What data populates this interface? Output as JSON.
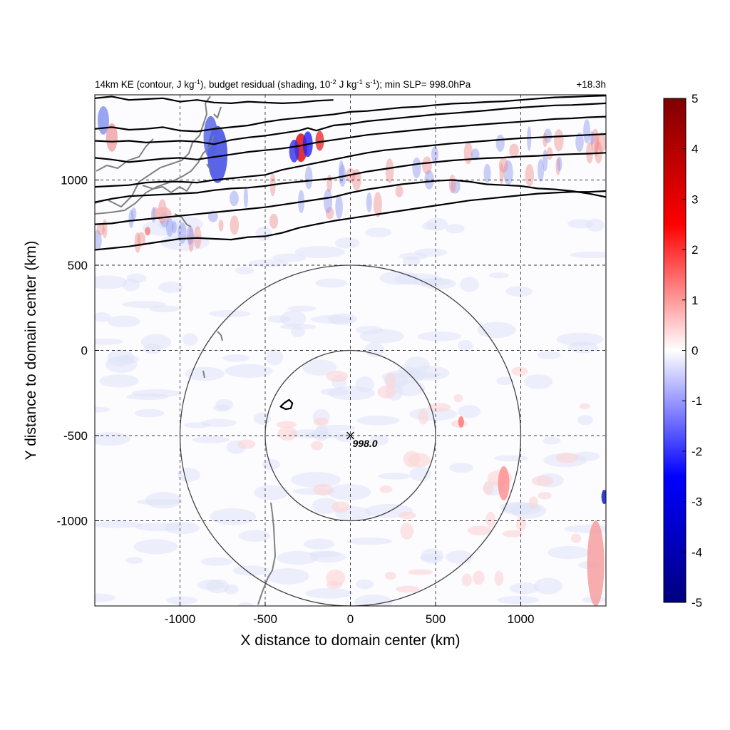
{
  "header": {
    "title_pre": "14km KE (contour, J kg",
    "title_sup1": "-1",
    "title_mid1": "), budget residual (shading, 10",
    "title_sup2": "-2",
    "title_mid2": " J kg",
    "title_sup3": "-1",
    "title_mid3": " s",
    "title_sup4": "-1",
    "title_post": "); min SLP= 998.0hPa",
    "time_label": "+18.3h"
  },
  "chart_data": {
    "type": "heatmap",
    "xlabel": "X distance to domain center (km)",
    "ylabel": "Y distance to domain center (km)",
    "xlim": [
      -1500,
      1500
    ],
    "ylim": [
      -1500,
      1500
    ],
    "xticks": [
      -1000,
      -500,
      0,
      500,
      1000
    ],
    "yticks": [
      -1000,
      -500,
      0,
      500,
      1000
    ],
    "grid": true,
    "colorbar": {
      "min": -5,
      "max": 5,
      "ticks": [
        5,
        4,
        3,
        2,
        1,
        0,
        -1,
        -2,
        -3,
        -4,
        -5
      ],
      "colormap": [
        "#00007f",
        "#0000ff",
        "#ffffff",
        "#ff0000",
        "#7f0000"
      ]
    },
    "center_marker": {
      "x": 0,
      "y": -500,
      "label": "998.0"
    },
    "range_circles": [
      {
        "x": 0,
        "y": -500,
        "radius": 500
      },
      {
        "x": 0,
        "y": -500,
        "radius": 1000
      }
    ],
    "ke_contours": [
      [
        [
          -1500,
          1480
        ],
        [
          -1400,
          1490
        ],
        [
          -1300,
          1470
        ],
        [
          -1200,
          1475
        ],
        [
          -1100,
          1480
        ],
        [
          -1000,
          1460
        ],
        [
          -900,
          1470
        ],
        [
          -800,
          1455
        ],
        [
          -700,
          1450
        ],
        [
          -600,
          1460
        ],
        [
          -500,
          1455
        ],
        [
          -400,
          1450
        ],
        [
          -300,
          1455
        ],
        [
          -200,
          1465
        ],
        [
          -100,
          1470
        ]
      ],
      [
        [
          -1500,
          1300
        ],
        [
          -1400,
          1310
        ],
        [
          -1300,
          1295
        ],
        [
          -1200,
          1300
        ],
        [
          -1100,
          1310
        ],
        [
          -1000,
          1290
        ],
        [
          -900,
          1285
        ],
        [
          -800,
          1300
        ],
        [
          -700,
          1310
        ],
        [
          -600,
          1320
        ],
        [
          -500,
          1340
        ],
        [
          -400,
          1355
        ],
        [
          -300,
          1365
        ],
        [
          -200,
          1375
        ],
        [
          -100,
          1385
        ],
        [
          0,
          1400
        ],
        [
          100,
          1405
        ],
        [
          200,
          1415
        ],
        [
          300,
          1425
        ],
        [
          400,
          1430
        ],
        [
          500,
          1440
        ],
        [
          600,
          1448
        ],
        [
          700,
          1452
        ],
        [
          800,
          1458
        ],
        [
          900,
          1462
        ],
        [
          1000,
          1470
        ],
        [
          1100,
          1478
        ],
        [
          1200,
          1485
        ],
        [
          1300,
          1488
        ],
        [
          1400,
          1492
        ],
        [
          1500,
          1495
        ]
      ],
      [
        [
          -1500,
          1230
        ],
        [
          -1400,
          1225
        ],
        [
          -1300,
          1230
        ],
        [
          -1200,
          1220
        ],
        [
          -1100,
          1225
        ],
        [
          -1000,
          1230
        ],
        [
          -900,
          1225
        ],
        [
          -800,
          1210
        ],
        [
          -700,
          1235
        ],
        [
          -600,
          1250
        ],
        [
          -500,
          1260
        ],
        [
          -400,
          1275
        ],
        [
          -300,
          1290
        ],
        [
          -250,
          1305
        ],
        [
          -200,
          1290
        ],
        [
          -100,
          1320
        ],
        [
          0,
          1330
        ],
        [
          100,
          1345
        ],
        [
          200,
          1355
        ],
        [
          300,
          1365
        ],
        [
          400,
          1375
        ],
        [
          500,
          1385
        ],
        [
          600,
          1392
        ],
        [
          700,
          1400
        ],
        [
          800,
          1408
        ],
        [
          900,
          1418
        ],
        [
          1000,
          1425
        ],
        [
          1100,
          1432
        ],
        [
          1200,
          1438
        ],
        [
          1300,
          1440
        ],
        [
          1400,
          1445
        ],
        [
          1500,
          1450
        ]
      ],
      [
        [
          -1500,
          1130
        ],
        [
          -1400,
          1120
        ],
        [
          -1300,
          1105
        ],
        [
          -1200,
          1115
        ],
        [
          -1100,
          1125
        ],
        [
          -1000,
          1130
        ],
        [
          -900,
          1120
        ],
        [
          -800,
          1135
        ],
        [
          -700,
          1150
        ],
        [
          -600,
          1165
        ],
        [
          -500,
          1175
        ],
        [
          -400,
          1185
        ],
        [
          -300,
          1200
        ],
        [
          -200,
          1220
        ],
        [
          -100,
          1235
        ],
        [
          0,
          1250
        ],
        [
          100,
          1265
        ],
        [
          200,
          1275
        ],
        [
          300,
          1285
        ],
        [
          400,
          1295
        ],
        [
          500,
          1305
        ],
        [
          600,
          1312
        ],
        [
          700,
          1320
        ],
        [
          800,
          1328
        ],
        [
          900,
          1335
        ],
        [
          1000,
          1342
        ],
        [
          1100,
          1350
        ],
        [
          1200,
          1358
        ],
        [
          1300,
          1362
        ],
        [
          1400,
          1368
        ],
        [
          1500,
          1372
        ]
      ],
      [
        [
          -1500,
          960
        ],
        [
          -1400,
          965
        ],
        [
          -1300,
          970
        ],
        [
          -1200,
          985
        ],
        [
          -1100,
          990
        ],
        [
          -1000,
          990
        ],
        [
          -900,
          985
        ],
        [
          -800,
          1000
        ],
        [
          -700,
          1010
        ],
        [
          -600,
          1020
        ],
        [
          -500,
          1030
        ],
        [
          -400,
          1060
        ],
        [
          -300,
          1080
        ],
        [
          -200,
          1100
        ],
        [
          -100,
          1120
        ],
        [
          0,
          1140
        ],
        [
          100,
          1160
        ],
        [
          200,
          1175
        ],
        [
          300,
          1185
        ],
        [
          400,
          1195
        ],
        [
          500,
          1205
        ],
        [
          600,
          1215
        ],
        [
          700,
          1222
        ],
        [
          800,
          1230
        ],
        [
          900,
          1238
        ],
        [
          1000,
          1245
        ],
        [
          1100,
          1250
        ],
        [
          1200,
          1255
        ],
        [
          1300,
          1260
        ],
        [
          1400,
          1265
        ],
        [
          1500,
          1270
        ]
      ],
      [
        [
          -1500,
          870
        ],
        [
          -1400,
          890
        ],
        [
          -1300,
          905
        ],
        [
          -1200,
          910
        ],
        [
          -1100,
          915
        ],
        [
          -1000,
          920
        ],
        [
          -900,
          925
        ],
        [
          -800,
          940
        ],
        [
          -700,
          950
        ],
        [
          -600,
          955
        ],
        [
          -500,
          965
        ],
        [
          -400,
          980
        ],
        [
          -300,
          990
        ],
        [
          -200,
          1000
        ],
        [
          -100,
          1010
        ],
        [
          0,
          1030
        ],
        [
          100,
          1050
        ],
        [
          200,
          1065
        ],
        [
          300,
          1080
        ],
        [
          400,
          1095
        ],
        [
          500,
          1105
        ],
        [
          600,
          1115
        ],
        [
          700,
          1122
        ],
        [
          800,
          1128
        ],
        [
          900,
          1132
        ],
        [
          1000,
          1138
        ],
        [
          1100,
          1142
        ],
        [
          1200,
          1148
        ],
        [
          1300,
          1152
        ],
        [
          1400,
          1155
        ],
        [
          1500,
          1160
        ]
      ],
      [
        [
          -1500,
          740
        ],
        [
          -1400,
          745
        ],
        [
          -1300,
          760
        ],
        [
          -1200,
          770
        ],
        [
          -1100,
          780
        ],
        [
          -1000,
          790
        ],
        [
          -900,
          800
        ],
        [
          -800,
          810
        ],
        [
          -700,
          820
        ],
        [
          -600,
          830
        ],
        [
          -500,
          840
        ],
        [
          -400,
          855
        ],
        [
          -300,
          870
        ],
        [
          -200,
          885
        ],
        [
          -100,
          900
        ],
        [
          0,
          925
        ],
        [
          100,
          945
        ],
        [
          200,
          960
        ],
        [
          300,
          975
        ],
        [
          400,
          985
        ],
        [
          500,
          995
        ],
        [
          600,
          1000
        ],
        [
          700,
          990
        ],
        [
          800,
          975
        ],
        [
          900,
          970
        ],
        [
          1000,
          965
        ],
        [
          1100,
          950
        ],
        [
          1200,
          945
        ],
        [
          1300,
          935
        ],
        [
          1400,
          920
        ],
        [
          1500,
          900
        ]
      ],
      [
        [
          -1500,
          590
        ],
        [
          -1400,
          600
        ],
        [
          -1300,
          610
        ],
        [
          -1200,
          625
        ],
        [
          -1100,
          640
        ],
        [
          -1000,
          655
        ],
        [
          -900,
          660
        ],
        [
          -800,
          655
        ],
        [
          -700,
          650
        ],
        [
          -600,
          665
        ],
        [
          -500,
          670
        ],
        [
          -400,
          690
        ],
        [
          -300,
          720
        ],
        [
          -200,
          740
        ],
        [
          -100,
          760
        ],
        [
          0,
          775
        ],
        [
          100,
          790
        ],
        [
          200,
          805
        ],
        [
          300,
          820
        ],
        [
          400,
          835
        ],
        [
          500,
          850
        ],
        [
          600,
          865
        ],
        [
          700,
          880
        ],
        [
          800,
          890
        ],
        [
          900,
          900
        ],
        [
          1000,
          910
        ],
        [
          1100,
          920
        ],
        [
          1200,
          925
        ],
        [
          1300,
          930
        ],
        [
          1400,
          930
        ],
        [
          1500,
          935
        ]
      ],
      [
        [
          -390,
          -310
        ],
        [
          -360,
          -290
        ],
        [
          -340,
          -310
        ],
        [
          -350,
          -340
        ],
        [
          -380,
          -345
        ],
        [
          -410,
          -330
        ],
        [
          -390,
          -310
        ]
      ]
    ]
  }
}
